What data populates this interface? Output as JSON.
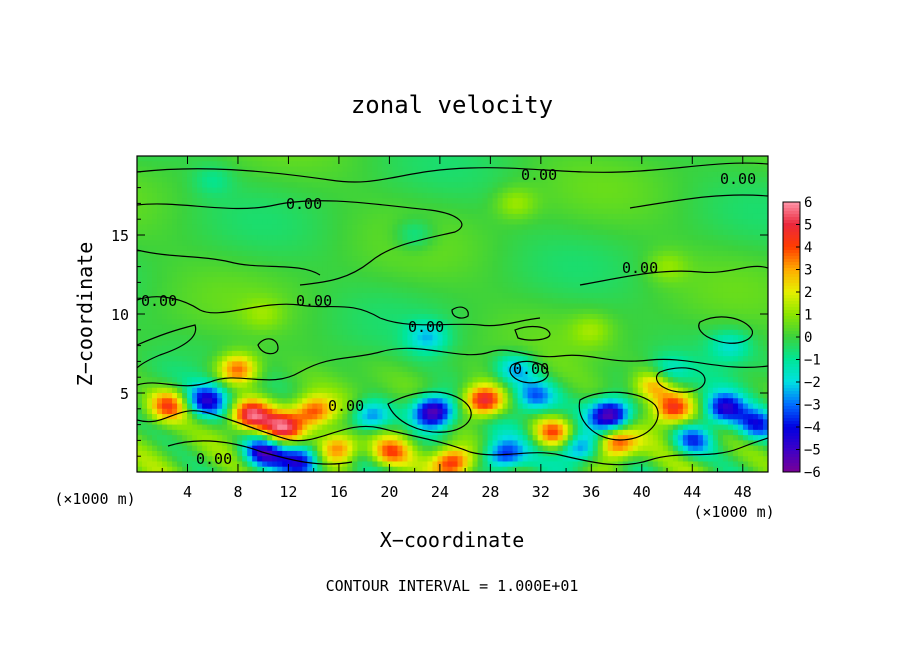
{
  "chart_data": {
    "type": "heatmap",
    "title": "zonal velocity",
    "xlabel": "X−coordinate",
    "ylabel": "Z−coordinate",
    "x_unit": "(×1000 m)",
    "y_unit": "(×1000 m)",
    "footer": "CONTOUR INTERVAL = 1.000E+01",
    "xlim": [
      0,
      50
    ],
    "ylim": [
      0,
      20
    ],
    "x_ticks": [
      "4",
      "8",
      "12",
      "16",
      "20",
      "24",
      "28",
      "32",
      "36",
      "40",
      "44",
      "48"
    ],
    "y_ticks": [
      "5",
      "10",
      "15"
    ],
    "colorbar": {
      "labels": [
        "6",
        "5",
        "4",
        "3",
        "2",
        "1",
        "0",
        "−1",
        "−2",
        "−3",
        "−4",
        "−5",
        "−6"
      ],
      "range": [
        -6,
        6
      ]
    },
    "contour_labels": [
      "0.00",
      "0.00",
      "0.00",
      "0.00",
      "0.00",
      "0.00",
      "0.00",
      "0.00",
      "0.00",
      "0.00"
    ],
    "anomalies": [
      {
        "x": 2.5,
        "y": 4.2,
        "v": 4.0
      },
      {
        "x": 5.5,
        "y": 4.5,
        "v": -4.0
      },
      {
        "x": 9.0,
        "y": 3.6,
        "v": 5.5
      },
      {
        "x": 11.5,
        "y": 2.8,
        "v": 5.0
      },
      {
        "x": 14.0,
        "y": 3.8,
        "v": 4.0
      },
      {
        "x": 10.0,
        "y": 1.2,
        "v": -4.5
      },
      {
        "x": 13.0,
        "y": 0.8,
        "v": -4.0
      },
      {
        "x": 16.0,
        "y": 1.5,
        "v": 4.0
      },
      {
        "x": 18.5,
        "y": 3.5,
        "v": -3.5
      },
      {
        "x": 20.0,
        "y": 1.2,
        "v": 3.5
      },
      {
        "x": 23.5,
        "y": 3.8,
        "v": -6.0
      },
      {
        "x": 25.0,
        "y": 0.6,
        "v": 5.0
      },
      {
        "x": 27.5,
        "y": 4.5,
        "v": 5.5
      },
      {
        "x": 29.0,
        "y": 1.0,
        "v": -4.0
      },
      {
        "x": 31.5,
        "y": 4.8,
        "v": -3.0
      },
      {
        "x": 33.0,
        "y": 2.5,
        "v": 4.0
      },
      {
        "x": 35.0,
        "y": 1.5,
        "v": -3.5
      },
      {
        "x": 37.5,
        "y": 3.6,
        "v": -6.0
      },
      {
        "x": 38.0,
        "y": 1.8,
        "v": 4.5
      },
      {
        "x": 41.0,
        "y": 5.5,
        "v": 3.5
      },
      {
        "x": 42.5,
        "y": 4.0,
        "v": 4.5
      },
      {
        "x": 44.0,
        "y": 2.0,
        "v": -3.5
      },
      {
        "x": 46.5,
        "y": 4.0,
        "v": -4.5
      },
      {
        "x": 49.0,
        "y": 3.0,
        "v": -3.5
      },
      {
        "x": 8.0,
        "y": 6.5,
        "v": 4.0
      },
      {
        "x": 23.0,
        "y": 8.5,
        "v": -2.0
      },
      {
        "x": 30.0,
        "y": 6.5,
        "v": -2.5
      },
      {
        "x": 42.0,
        "y": 6.2,
        "v": -2.0
      },
      {
        "x": 47.0,
        "y": 8.0,
        "v": -1.5
      },
      {
        "x": 22.0,
        "y": 15.0,
        "v": -1.2
      },
      {
        "x": 6.0,
        "y": 18.5,
        "v": -0.8
      },
      {
        "x": 30.0,
        "y": 17.0,
        "v": 1.2
      },
      {
        "x": 42.0,
        "y": 13.0,
        "v": 1.0
      },
      {
        "x": 10.0,
        "y": 10.0,
        "v": 0.8
      },
      {
        "x": 36.0,
        "y": 9.0,
        "v": 1.0
      }
    ]
  }
}
